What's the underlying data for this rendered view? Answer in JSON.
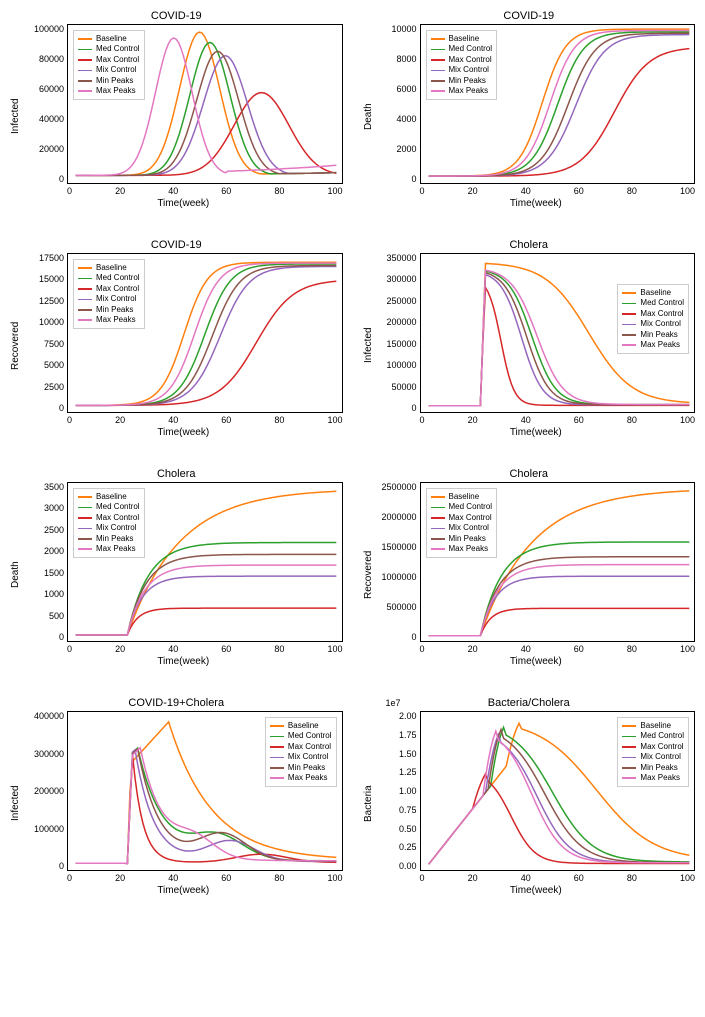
{
  "series_labels": [
    "Baseline",
    "Med Control",
    "Max Control",
    "Mix Control",
    "Min Peaks",
    "Max Peaks"
  ],
  "series_colors": [
    "#ff7f0e",
    "#2ca02c",
    "#d62728",
    "#9467bd",
    "#8c564b",
    "#e377c2"
  ],
  "legend_border": "#cccccc",
  "background_color": "#ffffff",
  "border_color": "#000000",
  "tick_fontsize": 9,
  "label_fontsize": 10,
  "title_fontsize": 11,
  "x_label": "Time(week)",
  "x_ticks": [
    "0",
    "20",
    "40",
    "60",
    "80",
    "100"
  ],
  "x_lim": [
    -3,
    103
  ],
  "charts": [
    {
      "title": "COVID-19",
      "ylabel": "Infected",
      "y_ticks": [
        "0",
        "20000",
        "40000",
        "60000",
        "80000",
        "100000"
      ],
      "y_lim": [
        -5000,
        102000
      ],
      "legend_pos": "top-left",
      "nx": 101,
      "curves": {
        "Baseline": {
          "type": "gauss",
          "peak": 97000,
          "center": 48,
          "width": 11,
          "base": 200,
          "tailR": 2000
        },
        "Med Control": {
          "type": "gauss",
          "peak": 90000,
          "center": 52,
          "width": 11,
          "base": 200,
          "tailR": 2000
        },
        "Max Control": {
          "type": "gauss",
          "peak": 56000,
          "center": 72,
          "width": 15,
          "base": 200,
          "tailR": 12000
        },
        "Mix Control": {
          "type": "gauss",
          "peak": 81000,
          "center": 58,
          "width": 12,
          "base": 200,
          "tailR": 2000
        },
        "Min Peaks": {
          "type": "gauss",
          "peak": 84000,
          "center": 55,
          "width": 11.5,
          "base": 200,
          "tailR": 2000
        },
        "Max Peaks": {
          "type": "gauss",
          "peak": 93000,
          "center": 38,
          "width": 10,
          "base": 200,
          "tailR": 7000
        }
      }
    },
    {
      "title": "COVID-19",
      "ylabel": "Death",
      "y_ticks": [
        "0",
        "2000",
        "4000",
        "6000",
        "8000",
        "10000"
      ],
      "y_lim": [
        -500,
        11000
      ],
      "legend_pos": "top-left",
      "nx": 101,
      "curves": {
        "Baseline": {
          "type": "sigmoid",
          "top": 10700,
          "center": 44,
          "k": 0.22,
          "base": 0
        },
        "Med Control": {
          "type": "sigmoid",
          "top": 10500,
          "center": 50,
          "k": 0.2,
          "base": 0
        },
        "Max Control": {
          "type": "sigmoid",
          "top": 9400,
          "center": 72,
          "k": 0.15,
          "base": 0
        },
        "Mix Control": {
          "type": "sigmoid",
          "top": 10300,
          "center": 57,
          "k": 0.18,
          "base": 0
        },
        "Min Peaks": {
          "type": "sigmoid",
          "top": 10400,
          "center": 54,
          "k": 0.19,
          "base": 0
        },
        "Max Peaks": {
          "type": "sigmoid",
          "top": 10600,
          "center": 47,
          "k": 0.21,
          "base": 0
        }
      }
    },
    {
      "title": "COVID-19",
      "ylabel": "Recovered",
      "y_ticks": [
        "0",
        "2500",
        "5000",
        "7500",
        "10000",
        "12500",
        "15000",
        "17500"
      ],
      "y_lim": [
        -800,
        18300
      ],
      "legend_pos": "top-left",
      "nx": 101,
      "curves": {
        "Baseline": {
          "type": "sigmoid",
          "top": 17300,
          "center": 42,
          "k": 0.22,
          "base": 0
        },
        "Med Control": {
          "type": "sigmoid",
          "top": 17100,
          "center": 50,
          "k": 0.2,
          "base": 0
        },
        "Max Control": {
          "type": "sigmoid",
          "top": 15200,
          "center": 70,
          "k": 0.14,
          "base": 0
        },
        "Mix Control": {
          "type": "sigmoid",
          "top": 16800,
          "center": 56,
          "k": 0.18,
          "base": 0
        },
        "Min Peaks": {
          "type": "sigmoid",
          "top": 16900,
          "center": 53,
          "k": 0.19,
          "base": 0
        },
        "Max Peaks": {
          "type": "sigmoid",
          "top": 17200,
          "center": 46,
          "k": 0.21,
          "base": 0
        }
      }
    },
    {
      "title": "Cholera",
      "ylabel": "Infected",
      "y_ticks": [
        "0",
        "50000",
        "100000",
        "150000",
        "200000",
        "250000",
        "300000",
        "350000"
      ],
      "y_lim": [
        -15000,
        365000
      ],
      "legend_pos": "right-mid",
      "nx": 101,
      "curves": {
        "Baseline": {
          "type": "cholera_inf",
          "rise": 20,
          "peak": 345000,
          "decay_center": 62,
          "decay_k": 0.12,
          "tail": 5000
        },
        "Med Control": {
          "type": "cholera_inf",
          "rise": 20,
          "peak": 330000,
          "decay_center": 40,
          "decay_k": 0.22,
          "tail": 3000
        },
        "Max Control": {
          "type": "cholera_inf",
          "rise": 20,
          "peak": 310000,
          "decay_center": 28,
          "decay_k": 0.4,
          "tail": 1000
        },
        "Mix Control": {
          "type": "cholera_inf",
          "rise": 20,
          "peak": 325000,
          "decay_center": 36,
          "decay_k": 0.25,
          "tail": 2000
        },
        "Min Peaks": {
          "type": "cholera_inf",
          "rise": 20,
          "peak": 328000,
          "decay_center": 38,
          "decay_k": 0.23,
          "tail": 2500
        },
        "Max Peaks": {
          "type": "cholera_inf",
          "rise": 20,
          "peak": 332000,
          "decay_center": 42,
          "decay_k": 0.2,
          "tail": 3000
        }
      }
    },
    {
      "title": "Cholera",
      "ylabel": "Death",
      "y_ticks": [
        "0",
        "500",
        "1000",
        "1500",
        "2000",
        "2500",
        "3000",
        "3500"
      ],
      "y_lim": [
        -150,
        3700
      ],
      "legend_pos": "top-left",
      "nx": 101,
      "curves": {
        "Baseline": {
          "type": "cholera_death",
          "rise": 20,
          "plateau": 3560,
          "settle": 55,
          "k": 0.1
        },
        "Med Control": {
          "type": "cholera_death",
          "rise": 20,
          "plateau": 2250,
          "settle": 38,
          "k": 0.25
        },
        "Max Control": {
          "type": "cholera_death",
          "rise": 20,
          "plateau": 650,
          "settle": 26,
          "k": 0.5
        },
        "Mix Control": {
          "type": "cholera_death",
          "rise": 20,
          "plateau": 1430,
          "settle": 32,
          "k": 0.35
        },
        "Min Peaks": {
          "type": "cholera_death",
          "rise": 20,
          "plateau": 1960,
          "settle": 36,
          "k": 0.28
        },
        "Max Peaks": {
          "type": "cholera_death",
          "rise": 20,
          "plateau": 1700,
          "settle": 34,
          "k": 0.3
        }
      }
    },
    {
      "title": "Cholera",
      "ylabel": "Recovered",
      "y_ticks": [
        "0",
        "500000",
        "1000000",
        "1500000",
        "2000000",
        "2500000"
      ],
      "y_lim": [
        -100000,
        2900000
      ],
      "legend_pos": "top-left",
      "nx": 101,
      "curves": {
        "Baseline": {
          "type": "cholera_death",
          "rise": 20,
          "plateau": 2800000,
          "settle": 55,
          "k": 0.1
        },
        "Med Control": {
          "type": "cholera_death",
          "rise": 20,
          "plateau": 1780000,
          "settle": 38,
          "k": 0.25
        },
        "Max Control": {
          "type": "cholera_death",
          "rise": 20,
          "plateau": 520000,
          "settle": 26,
          "k": 0.5
        },
        "Mix Control": {
          "type": "cholera_death",
          "rise": 20,
          "plateau": 1130000,
          "settle": 32,
          "k": 0.35
        },
        "Min Peaks": {
          "type": "cholera_death",
          "rise": 20,
          "plateau": 1500000,
          "settle": 36,
          "k": 0.28
        },
        "Max Peaks": {
          "type": "cholera_death",
          "rise": 20,
          "plateau": 1350000,
          "settle": 34,
          "k": 0.3
        }
      }
    },
    {
      "title": "COVID-19+Cholera",
      "ylabel": "Infected",
      "y_ticks": [
        "0",
        "100000",
        "200000",
        "300000",
        "400000"
      ],
      "y_lim": [
        -20000,
        460000
      ],
      "legend_pos": "right-top",
      "nx": 101,
      "curves": {
        "Baseline": {
          "type": "combined",
          "rise": 20,
          "peak1": 430000,
          "c1": 36,
          "w1": 22,
          "drop_k": 0.06,
          "tail": 10000,
          "bump": 0
        },
        "Med Control": {
          "type": "combined",
          "rise": 20,
          "peak1": 350000,
          "c1": 24,
          "w1": 6,
          "drop_k": 0.1,
          "tail": 8000,
          "bump": 70000,
          "bc": 55,
          "bw": 14
        },
        "Max Control": {
          "type": "combined",
          "rise": 20,
          "peak1": 330000,
          "c1": 22,
          "w1": 3,
          "drop_k": 0.25,
          "tail": 3000,
          "bump": 25000,
          "bc": 72,
          "bw": 14
        },
        "Mix Control": {
          "type": "combined",
          "rise": 20,
          "peak1": 345000,
          "c1": 23,
          "w1": 5,
          "drop_k": 0.14,
          "tail": 6000,
          "bump": 62000,
          "bc": 60,
          "bw": 13
        },
        "Min Peaks": {
          "type": "combined",
          "rise": 20,
          "peak1": 348000,
          "c1": 24,
          "w1": 5,
          "drop_k": 0.12,
          "tail": 7000,
          "bump": 80000,
          "bc": 57,
          "bw": 13
        },
        "Max Peaks": {
          "type": "combined",
          "rise": 20,
          "peak1": 350000,
          "c1": 25,
          "w1": 6,
          "drop_k": 0.11,
          "tail": 8000,
          "bump": 55000,
          "bc": 46,
          "bw": 11
        }
      }
    },
    {
      "title": "Bacteria/Cholera",
      "ylabel": "Bacteria",
      "y_ticks": [
        "0.00",
        "0.25",
        "0.50",
        "0.75",
        "1.00",
        "1.25",
        "1.50",
        "1.75",
        "2.00"
      ],
      "y_lim": [
        -0.08,
        2.1
      ],
      "y_exp": "1e7",
      "legend_pos": "right-top",
      "nx": 101,
      "curves": {
        "Baseline": {
          "type": "bacteria",
          "slope": 0.045,
          "peak": 2.0,
          "pc": 36,
          "decay_c": 65,
          "decay_k": 0.09,
          "tail": 0.05
        },
        "Med Control": {
          "type": "bacteria",
          "slope": 0.045,
          "peak": 1.95,
          "pc": 30,
          "decay_c": 48,
          "decay_k": 0.13,
          "tail": 0.03
        },
        "Max Control": {
          "type": "bacteria",
          "slope": 0.045,
          "peak": 1.3,
          "pc": 23,
          "decay_c": 32,
          "decay_k": 0.22,
          "tail": 0.01
        },
        "Mix Control": {
          "type": "bacteria",
          "slope": 0.045,
          "peak": 1.85,
          "pc": 28,
          "decay_c": 42,
          "decay_k": 0.16,
          "tail": 0.02
        },
        "Min Peaks": {
          "type": "bacteria",
          "slope": 0.045,
          "peak": 1.92,
          "pc": 29,
          "decay_c": 45,
          "decay_k": 0.14,
          "tail": 0.02
        },
        "Max Peaks": {
          "type": "bacteria",
          "slope": 0.045,
          "peak": 1.9,
          "pc": 27,
          "decay_c": 40,
          "decay_k": 0.17,
          "tail": 0.02
        }
      }
    }
  ]
}
